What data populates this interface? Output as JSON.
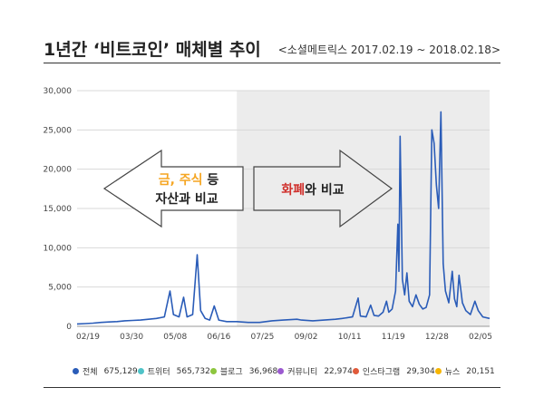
{
  "header": {
    "title": "1년간 ‘비트코인’ 매체별 추이",
    "source": "<소셜메트릭스 2017.02.19 ~ 2018.02.18>"
  },
  "annotations": {
    "left_arrow": {
      "part1": "금, 주식",
      "part2": " 등",
      "line2": "자산과 비교"
    },
    "right_arrow": {
      "part1": "화폐",
      "part2": "와 비교"
    },
    "colors": {
      "highlight_orange": "#f5a623",
      "highlight_red": "#d0312d"
    }
  },
  "legend": [
    {
      "name": "전체",
      "value": "675,129",
      "color": "#2a5cb8"
    },
    {
      "name": "트위터",
      "value": "565,732",
      "color": "#4fc3c8"
    },
    {
      "name": "블로그",
      "value": "36,968",
      "color": "#8dc63f"
    },
    {
      "name": "커뮤니티",
      "value": "22,974",
      "color": "#9b59d0"
    },
    {
      "name": "인스타그램",
      "value": "29,304",
      "color": "#e05a3a"
    },
    {
      "name": "뉴스",
      "value": "20,151",
      "color": "#f7b500"
    }
  ],
  "chart_data": {
    "type": "line",
    "x_tick_labels": [
      "02/19",
      "03/30",
      "05/08",
      "06/16",
      "07/25",
      "09/02",
      "10/11",
      "11/19",
      "12/28",
      "02/05"
    ],
    "y_tick_labels": [
      "0",
      "5,000",
      "10,000",
      "15,000",
      "20,000",
      "25,000",
      "30,000"
    ],
    "ylim": [
      0,
      30000
    ],
    "shaded_region": {
      "from": "2017-07-10",
      "to": "2018-02-18",
      "color": "#ececec"
    },
    "series": [
      {
        "name": "전체",
        "color": "#2a5cb8",
        "points": [
          [
            "2017-02-19",
            300
          ],
          [
            "2017-02-26",
            350
          ],
          [
            "2017-03-05",
            400
          ],
          [
            "2017-03-12",
            500
          ],
          [
            "2017-03-19",
            550
          ],
          [
            "2017-03-26",
            600
          ],
          [
            "2017-04-02",
            700
          ],
          [
            "2017-04-09",
            750
          ],
          [
            "2017-04-16",
            800
          ],
          [
            "2017-04-23",
            900
          ],
          [
            "2017-04-30",
            1000
          ],
          [
            "2017-05-07",
            1200
          ],
          [
            "2017-05-12",
            4500
          ],
          [
            "2017-05-15",
            1500
          ],
          [
            "2017-05-20",
            1200
          ],
          [
            "2017-05-24",
            3700
          ],
          [
            "2017-05-27",
            1200
          ],
          [
            "2017-06-01",
            1500
          ],
          [
            "2017-06-05",
            9100
          ],
          [
            "2017-06-08",
            2000
          ],
          [
            "2017-06-12",
            1000
          ],
          [
            "2017-06-16",
            800
          ],
          [
            "2017-06-20",
            2600
          ],
          [
            "2017-06-24",
            800
          ],
          [
            "2017-07-01",
            600
          ],
          [
            "2017-07-10",
            600
          ],
          [
            "2017-07-20",
            500
          ],
          [
            "2017-07-30",
            500
          ],
          [
            "2017-08-10",
            700
          ],
          [
            "2017-08-20",
            800
          ],
          [
            "2017-09-01",
            900
          ],
          [
            "2017-09-05",
            800
          ],
          [
            "2017-09-15",
            700
          ],
          [
            "2017-09-25",
            800
          ],
          [
            "2017-10-05",
            900
          ],
          [
            "2017-10-11",
            1000
          ],
          [
            "2017-10-20",
            1200
          ],
          [
            "2017-10-25",
            3600
          ],
          [
            "2017-10-27",
            1300
          ],
          [
            "2017-11-01",
            1200
          ],
          [
            "2017-11-05",
            2700
          ],
          [
            "2017-11-08",
            1400
          ],
          [
            "2017-11-12",
            1300
          ],
          [
            "2017-11-16",
            1800
          ],
          [
            "2017-11-19",
            3200
          ],
          [
            "2017-11-21",
            1800
          ],
          [
            "2017-11-24",
            2200
          ],
          [
            "2017-11-27",
            4500
          ],
          [
            "2017-11-29",
            13000
          ],
          [
            "2017-11-30",
            7000
          ],
          [
            "2017-12-01",
            24200
          ],
          [
            "2017-12-03",
            6000
          ],
          [
            "2017-12-05",
            4000
          ],
          [
            "2017-12-07",
            6800
          ],
          [
            "2017-12-09",
            3200
          ],
          [
            "2017-12-12",
            2500
          ],
          [
            "2017-12-15",
            4000
          ],
          [
            "2017-12-18",
            2800
          ],
          [
            "2017-12-21",
            2200
          ],
          [
            "2017-12-24",
            2400
          ],
          [
            "2017-12-27",
            4000
          ],
          [
            "2017-12-29",
            25000
          ],
          [
            "2017-12-31",
            23300
          ],
          [
            "2018-01-02",
            18000
          ],
          [
            "2018-01-04",
            15000
          ],
          [
            "2018-01-06",
            27300
          ],
          [
            "2018-01-08",
            8000
          ],
          [
            "2018-01-10",
            4500
          ],
          [
            "2018-01-13",
            3000
          ],
          [
            "2018-01-16",
            7000
          ],
          [
            "2018-01-18",
            3500
          ],
          [
            "2018-01-20",
            2500
          ],
          [
            "2018-01-22",
            6500
          ],
          [
            "2018-01-25",
            3000
          ],
          [
            "2018-01-28",
            2000
          ],
          [
            "2018-02-01",
            1500
          ],
          [
            "2018-02-05",
            3200
          ],
          [
            "2018-02-08",
            2000
          ],
          [
            "2018-02-12",
            1200
          ],
          [
            "2018-02-18",
            1000
          ]
        ]
      }
    ],
    "grid": true
  }
}
